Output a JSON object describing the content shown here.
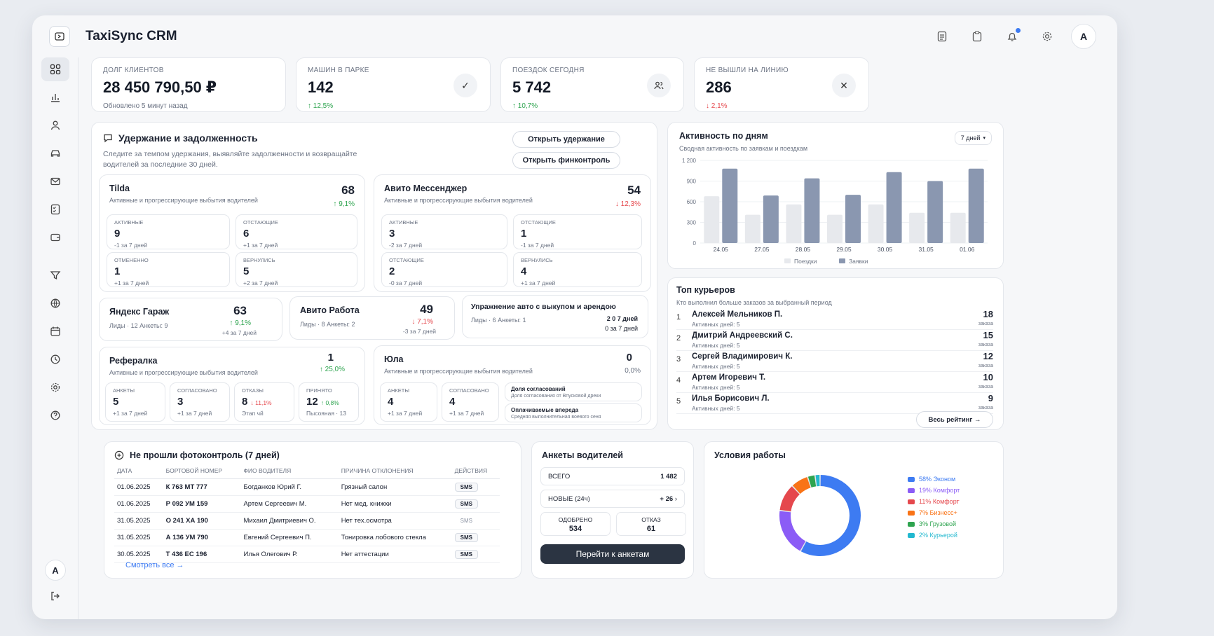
{
  "app": {
    "title": "TaxiSync CRM",
    "avatar": "A"
  },
  "kpis": [
    {
      "label": "ДОЛГ КЛИЕНТОВ",
      "value": "28 450 790,50 ₽",
      "sub": "Обновлено 5 минут назад"
    },
    {
      "label": "МАШИН В ПАРКЕ",
      "value": "142",
      "change": "↑ 12,5%",
      "icon": "check-icon"
    },
    {
      "label": "ПОЕЗДОК СЕГОДНЯ",
      "value": "5 742",
      "change": "↑ 10,7%",
      "icon": "users-icon"
    },
    {
      "label": "НЕ ВЫШЛИ НА ЛИНИЮ",
      "value": "286",
      "change": "↓ 2,1%",
      "icon": "close-icon"
    }
  ],
  "retention": {
    "title": "Удержание и задолженность",
    "subtitle": "Следите за темпом удержания, выявляйте задолженности и возвращайте водителей за последние 30 дней.",
    "btn_retention": "Открыть удержание",
    "btn_fin": "Открыть финконтроль",
    "tilda": {
      "name": "Tilda",
      "desc": "Активные и прогрессирующие выбытия водителей",
      "value": "68",
      "change": "↑ 9,1%",
      "cells": [
        {
          "label": "АКТИВНЫЕ",
          "value": "9",
          "sub": "-1 за 7 дней"
        },
        {
          "label": "ОТСТАЮЩИЕ",
          "value": "6",
          "sub": "+1 за 7 дней"
        },
        {
          "label": "ОТМЕНЕННО",
          "value": "1",
          "sub": "+1 за 7 дней"
        },
        {
          "label": "ВЕРНУЛИСЬ",
          "value": "5",
          "sub": "+2 за 7 дней"
        }
      ]
    },
    "avito_msg": {
      "name": "Авито Мессенджер",
      "desc": "Активные и прогрессирующие выбытия водителей",
      "value": "54",
      "change": "↓ 12,3%",
      "cells": [
        {
          "label": "АКТИВНЫЕ",
          "value": "3",
          "sub": "-2 за 7 дней"
        },
        {
          "label": "ОТСТАЮЩИЕ",
          "value": "1",
          "sub": "-1 за 7 дней"
        },
        {
          "label": "ОТСТАЮЩИЕ",
          "value": "2",
          "sub": "-0 за 7 дней"
        },
        {
          "label": "ВЕРНУЛИСЬ",
          "value": "4",
          "sub": "+1 за 7 дней"
        }
      ]
    },
    "yandex": {
      "name": "Яндекс Гараж",
      "meta": "Лиды · 12    Анкеты: 9",
      "value": "63",
      "change": "↑ 9,1%",
      "sub": "+4 за 7 дней"
    },
    "avito_work": {
      "name": "Авито Работа",
      "meta": "Лиды · 8    Анкеты: 2",
      "value": "49",
      "change": "↓ 7,1%",
      "sub": "-3 за 7 дней"
    },
    "rent": {
      "name": "Упражнение авто с выкупом и арендою",
      "meta": "Лиды · 6    Анкеты: 1",
      "line1": "2  0 7 дней",
      "line2": "0 за 7 дней"
    },
    "referal": {
      "name": "Рефералка",
      "desc": "Активные и прогрессирующие выбытия водителей",
      "value": "1",
      "change": "↑ 25,0%",
      "cells": [
        {
          "label": "АНКЕТЫ",
          "value": "5",
          "sub": "+1 за 7 дней"
        },
        {
          "label": "СОГЛАСОВАНО",
          "value": "3",
          "sub": "+1 за 7 дней"
        },
        {
          "label": "ОТКАЗЫ",
          "value": "8",
          "extra": "↓ 11,1%",
          "sub": "Этап чй"
        },
        {
          "label": "ПРИНЯТО",
          "value": "12",
          "extra": "↑ 0,8%",
          "sub": "Пысояная · 13"
        }
      ]
    },
    "yula": {
      "name": "Юла",
      "desc": "Активные и прогрессирующие выбытия водителей",
      "value": "0",
      "change": "0,0%",
      "cells": [
        {
          "label": "АНКЕТЫ",
          "value": "4",
          "sub": "+1 за 7 дней"
        },
        {
          "label": "СОГЛАСОВАНО",
          "value": "4",
          "sub": "+1 за 7 дней"
        }
      ],
      "rows": [
        {
          "title": "Доля согласований",
          "sub": "Доля согласования от Впусковой дреки"
        },
        {
          "title": "Оплачиваемые впередa",
          "sub": "Средняя выполнительная воевого сеня"
        }
      ]
    }
  },
  "activity": {
    "title": "Активность по дням",
    "subtitle": "Сводная активность по заявкам и поездкам",
    "period": "7 дней"
  },
  "chart_data": {
    "type": "bar",
    "categories": [
      "24.05",
      "27.05",
      "28.05",
      "29.05",
      "30.05",
      "31.05",
      "01.06"
    ],
    "series": [
      {
        "name": "Поездки",
        "values": [
          680,
          410,
          560,
          410,
          560,
          440,
          440
        ],
        "color": "#e7e9ed"
      },
      {
        "name": "Заявки",
        "values": [
          1080,
          690,
          940,
          700,
          1030,
          900,
          1080
        ],
        "color": "#8a97b0"
      }
    ],
    "yticks": [
      "0",
      "300",
      "600",
      "900",
      "1 200"
    ],
    "ylim": [
      0,
      1200
    ],
    "legend": "bottom"
  },
  "couriers": {
    "title": "Топ курьеров",
    "subtitle": "Кто выполнил больше заказов за выбранный период",
    "button": "Весь рейтинг",
    "rows": [
      {
        "rank": "1",
        "name": "Алексей Мельников П.",
        "days": "Активных дней: 5",
        "count": "18",
        "unit": "заказа"
      },
      {
        "rank": "2",
        "name": "Дмитрий Андреевский С.",
        "days": "Активных дней: 5",
        "count": "15",
        "unit": "заказа"
      },
      {
        "rank": "3",
        "name": "Сергей Владимирович К.",
        "days": "Активных дней: 5",
        "count": "12",
        "unit": "заказа"
      },
      {
        "rank": "4",
        "name": "Артем Игоревич Т.",
        "days": "Активных дней: 5",
        "count": "10",
        "unit": "заказа"
      },
      {
        "rank": "5",
        "name": "Илья Борисович Л.",
        "days": "Активных дней: 5",
        "count": "9",
        "unit": "заказа"
      }
    ]
  },
  "photocontrol": {
    "title": "Не прошли фотоконтроль (7 дней)",
    "columns": [
      "ДАТА",
      "БОРТОВОЙ НОМЕР",
      "ФИО ВОДИТЕЛЯ",
      "ПРИЧИНА ОТКЛОНЕНИЯ",
      "ДЕЙСТВИЯ"
    ],
    "rows": [
      {
        "date": "01.06.2025",
        "plate": "К 763 МТ 777",
        "driver": "Богданков Юрий Г.",
        "reason": "Грязный салон",
        "action": "SMS"
      },
      {
        "date": "01.06.2025",
        "plate": "Р 092 УМ 159",
        "driver": "Артем Сергеевич М.",
        "reason": "Нет мед. книжки",
        "action": "SMS"
      },
      {
        "date": "31.05.2025",
        "plate": "О 241 ХА 190",
        "driver": "Михаил Дмитриевич О.",
        "reason": "Нет тех.осмотра",
        "action": "SMS"
      },
      {
        "date": "31.05.2025",
        "plate": "А 136 УМ 790",
        "driver": "Евгений Сергеевич П.",
        "reason": "Тонировка лобового стекла",
        "action": "SMS"
      },
      {
        "date": "30.05.2025",
        "plate": "Т 436 ЕС 196",
        "driver": "Илья Олегович Р.",
        "reason": "Нет аттестации",
        "action": "SMS"
      }
    ],
    "link": "Смотреть все"
  },
  "applications": {
    "title": "Анкеты водителей",
    "total_label": "ВСЕГО",
    "total_value": "1 482",
    "new_label": "НОВЫЕ (24ч)",
    "new_value": "+ 26",
    "approved_label": "ОДОБРЕНО",
    "approved_value": "534",
    "rejected_label": "ОТКАЗ",
    "rejected_value": "61",
    "button": "Перейти к анкетам"
  },
  "conditions": {
    "title": "Условия работы",
    "items": [
      {
        "label": "58% Эконом",
        "value": 58,
        "color": "#3d7bf2"
      },
      {
        "label": "19% Комфорт",
        "value": 19,
        "color": "#8b5cf6"
      },
      {
        "label": "11% Комфорт",
        "value": 11,
        "color": "#e5484d"
      },
      {
        "label": "7% Бизнесс+",
        "value": 7,
        "color": "#f97316"
      },
      {
        "label": "3% Грузовой",
        "value": 3,
        "color": "#2ea44f"
      },
      {
        "label": "2% Курьерой",
        "value": 2,
        "color": "#22b8cf"
      }
    ]
  }
}
